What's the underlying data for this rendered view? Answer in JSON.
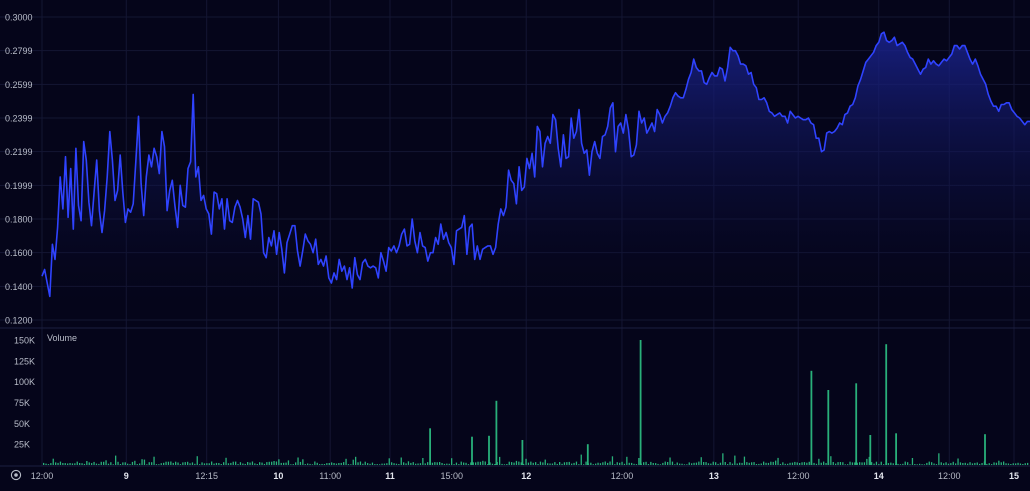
{
  "colors": {
    "background": "#05051a",
    "price_line": "#2f43ff",
    "area_top": "#1a238f",
    "volume_bar": "#29b07a",
    "grid": "#141633",
    "axis_text": "#b8bcc8"
  },
  "volume_pane_label": "Volume",
  "settings_icon": "settings-icon",
  "chart_data": [
    {
      "type": "area",
      "pane": "price",
      "y_ticks": [
        "0.3000",
        "0.2799",
        "0.2599",
        "0.2399",
        "0.2199",
        "0.1999",
        "0.1800",
        "0.1600",
        "0.1400",
        "0.1200"
      ],
      "ylim": [
        0.12,
        0.3
      ],
      "grid": true,
      "x_ticks": [
        {
          "label": "12:00",
          "t": 0
        },
        {
          "label": "9",
          "t": 0.0853
        },
        {
          "label": "12:15",
          "t": 0.1667
        },
        {
          "label": "10",
          "t": 0.2393
        },
        {
          "label": "11:00",
          "t": 0.2917
        },
        {
          "label": "11",
          "t": 0.3522
        },
        {
          "label": "15:00",
          "t": 0.4147
        },
        {
          "label": "12",
          "t": 0.4901
        },
        {
          "label": "12:00",
          "t": 0.587
        },
        {
          "label": "13",
          "t": 0.68
        },
        {
          "label": "12:00",
          "t": 0.7654
        },
        {
          "label": "14",
          "t": 0.8469
        },
        {
          "label": "12:00",
          "t": 0.9183
        },
        {
          "label": "15",
          "t": 0.9838
        }
      ],
      "series": [
        {
          "values": [
            0.146,
            0.15,
            0.142,
            0.134,
            0.165,
            0.156,
            0.175,
            0.205,
            0.186,
            0.217,
            0.181,
            0.21,
            0.174,
            0.222,
            0.188,
            0.179,
            0.226,
            0.215,
            0.19,
            0.176,
            0.196,
            0.215,
            0.185,
            0.172,
            0.185,
            0.205,
            0.232,
            0.215,
            0.191,
            0.197,
            0.218,
            0.196,
            0.178,
            0.186,
            0.184,
            0.189,
            0.214,
            0.241,
            0.201,
            0.182,
            0.205,
            0.218,
            0.211,
            0.222,
            0.217,
            0.207,
            0.232,
            0.223,
            0.185,
            0.197,
            0.203,
            0.188,
            0.175,
            0.2,
            0.188,
            0.187,
            0.21,
            0.214,
            0.254,
            0.205,
            0.211,
            0.191,
            0.194,
            0.186,
            0.183,
            0.171,
            0.196,
            0.195,
            0.186,
            0.192,
            0.174,
            0.192,
            0.179,
            0.178,
            0.187,
            0.191,
            0.187,
            0.18,
            0.169,
            0.182,
            0.168,
            0.192,
            0.191,
            0.19,
            0.183,
            0.16,
            0.157,
            0.169,
            0.164,
            0.173,
            0.159,
            0.172,
            0.162,
            0.148,
            0.166,
            0.171,
            0.176,
            0.176,
            0.161,
            0.152,
            0.161,
            0.171,
            0.167,
            0.165,
            0.16,
            0.168,
            0.153,
            0.156,
            0.152,
            0.158,
            0.145,
            0.142,
            0.148,
            0.144,
            0.156,
            0.149,
            0.152,
            0.144,
            0.151,
            0.139,
            0.157,
            0.147,
            0.144,
            0.154,
            0.156,
            0.152,
            0.151,
            0.152,
            0.151,
            0.145,
            0.16,
            0.155,
            0.149,
            0.163,
            0.161,
            0.164,
            0.16,
            0.164,
            0.171,
            0.174,
            0.164,
            0.165,
            0.18,
            0.167,
            0.16,
            0.172,
            0.164,
            0.163,
            0.155,
            0.16,
            0.16,
            0.169,
            0.165,
            0.177,
            0.168,
            0.172,
            0.166,
            0.163,
            0.153,
            0.173,
            0.174,
            0.175,
            0.182,
            0.159,
            0.175,
            0.177,
            0.156,
            0.164,
            0.156,
            0.162,
            0.163,
            0.164,
            0.164,
            0.159,
            0.163,
            0.177,
            0.186,
            0.182,
            0.187,
            0.209,
            0.203,
            0.201,
            0.189,
            0.211,
            0.197,
            0.199,
            0.216,
            0.21,
            0.219,
            0.205,
            0.235,
            0.232,
            0.211,
            0.225,
            0.229,
            0.225,
            0.242,
            0.239,
            0.222,
            0.211,
            0.23,
            0.216,
            0.217,
            0.24,
            0.228,
            0.232,
            0.245,
            0.225,
            0.219,
            0.221,
            0.206,
            0.22,
            0.226,
            0.219,
            0.216,
            0.229,
            0.23,
            0.235,
            0.246,
            0.249,
            0.22,
            0.235,
            0.237,
            0.231,
            0.242,
            0.233,
            0.217,
            0.218,
            0.224,
            0.244,
            0.237,
            0.24,
            0.231,
            0.234,
            0.237,
            0.232,
            0.245,
            0.242,
            0.237,
            0.241,
            0.243,
            0.247,
            0.252,
            0.255,
            0.253,
            0.252,
            0.252,
            0.257,
            0.263,
            0.267,
            0.275,
            0.27,
            0.268,
            0.268,
            0.261,
            0.26,
            0.264,
            0.267,
            0.265,
            0.265,
            0.27,
            0.269,
            0.262,
            0.27,
            0.282,
            0.28,
            0.28,
            0.277,
            0.272,
            0.272,
            0.271,
            0.266,
            0.267,
            0.26,
            0.258,
            0.251,
            0.251,
            0.252,
            0.249,
            0.244,
            0.243,
            0.241,
            0.242,
            0.243,
            0.241,
            0.241,
            0.237,
            0.244,
            0.242,
            0.24,
            0.241,
            0.24,
            0.239,
            0.239,
            0.24,
            0.237,
            0.236,
            0.228,
            0.228,
            0.22,
            0.221,
            0.231,
            0.232,
            0.231,
            0.232,
            0.234,
            0.237,
            0.236,
            0.242,
            0.243,
            0.247,
            0.248,
            0.252,
            0.259,
            0.263,
            0.268,
            0.273,
            0.275,
            0.277,
            0.279,
            0.283,
            0.285,
            0.29,
            0.291,
            0.286,
            0.285,
            0.286,
            0.288,
            0.283,
            0.284,
            0.285,
            0.283,
            0.279,
            0.276,
            0.275,
            0.272,
            0.269,
            0.266,
            0.269,
            0.27,
            0.275,
            0.272,
            0.274,
            0.272,
            0.271,
            0.273,
            0.275,
            0.274,
            0.276,
            0.278,
            0.283,
            0.283,
            0.281,
            0.283,
            0.283,
            0.279,
            0.275,
            0.272,
            0.275,
            0.271,
            0.266,
            0.263,
            0.26,
            0.254,
            0.25,
            0.247,
            0.247,
            0.244,
            0.248,
            0.248,
            0.249,
            0.249,
            0.245,
            0.243,
            0.241,
            0.24,
            0.238,
            0.236,
            0.238,
            0.238
          ]
        }
      ]
    },
    {
      "type": "bar",
      "pane": "volume",
      "title": "Volume",
      "y_ticks": [
        "150K",
        "125K",
        "100K",
        "75K",
        "50K",
        "25K"
      ],
      "ylim": [
        0,
        155000
      ],
      "spikes": [
        {
          "t": 0.3919,
          "value": 44000
        },
        {
          "t": 0.4343,
          "value": 34000
        },
        {
          "t": 0.4515,
          "value": 35000
        },
        {
          "t": 0.459,
          "value": 77000
        },
        {
          "t": 0.4853,
          "value": 30000
        },
        {
          "t": 0.5515,
          "value": 25000
        },
        {
          "t": 0.605,
          "value": 150000
        },
        {
          "t": 0.7778,
          "value": 113000
        },
        {
          "t": 0.7949,
          "value": 90000
        },
        {
          "t": 0.8232,
          "value": 98000
        },
        {
          "t": 0.8374,
          "value": 36000
        },
        {
          "t": 0.8535,
          "value": 145000
        },
        {
          "t": 0.8636,
          "value": 38000
        },
        {
          "t": 0.9535,
          "value": 37000
        }
      ]
    }
  ]
}
